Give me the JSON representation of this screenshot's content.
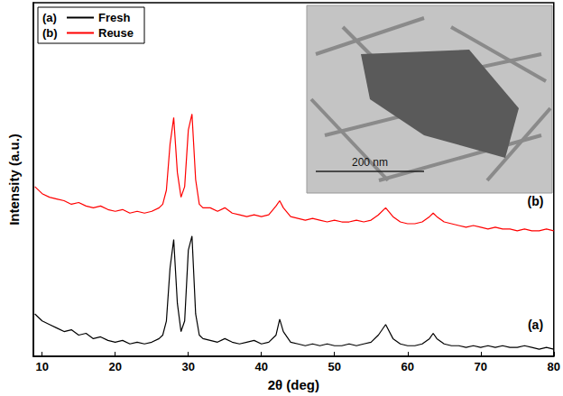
{
  "chart_data": {
    "type": "line",
    "x_label": "2θ (deg)",
    "y_label": "Intensity (a.u.)",
    "xlim": [
      8.8,
      80
    ],
    "xticks": [
      10,
      20,
      30,
      40,
      50,
      60,
      70,
      80
    ],
    "ylim": [
      0,
      100
    ],
    "tick_labels": "x",
    "grid": false,
    "legend": "upper left",
    "x": [
      9,
      10,
      11,
      12,
      13,
      14,
      15,
      16,
      17,
      18,
      19,
      20,
      21,
      22,
      23,
      24,
      25,
      26,
      26.5,
      27,
      27.5,
      28,
      28.5,
      29,
      29.5,
      30,
      30.5,
      31,
      31.5,
      32,
      33,
      34,
      35,
      36,
      37,
      38,
      39,
      40,
      41,
      42,
      42.5,
      43,
      44,
      45,
      46,
      47,
      48,
      49,
      50,
      51,
      52,
      53,
      54,
      55,
      56,
      57,
      58,
      59,
      60,
      61,
      62,
      63,
      63.5,
      64,
      65,
      66,
      67,
      68,
      69,
      70,
      71,
      72,
      73,
      74,
      75,
      76,
      77,
      78,
      79,
      80
    ],
    "series": [
      {
        "name": "Fresh",
        "label": "(a)",
        "color": "#000000",
        "values": [
          12,
          10,
          9,
          8,
          7,
          7.5,
          6,
          6.5,
          5,
          5.5,
          4.5,
          4,
          4.5,
          3.5,
          4,
          3.5,
          4,
          5,
          6,
          10,
          25,
          33,
          15,
          7,
          10,
          30,
          34,
          12,
          6,
          5,
          4.5,
          4,
          5,
          4,
          3.5,
          4,
          4.5,
          3.5,
          4,
          6,
          10.5,
          7,
          4,
          3.5,
          3,
          3.5,
          3,
          3.5,
          3,
          3,
          3.5,
          3,
          3.5,
          4,
          6,
          9,
          5,
          3.5,
          3,
          3,
          3.5,
          5,
          6.5,
          5,
          3.5,
          3,
          3,
          2.5,
          3,
          2.5,
          3,
          2.5,
          3,
          2.5,
          2.5,
          3,
          2.5,
          2,
          2.5,
          2
        ]
      },
      {
        "name": "Reuse",
        "label": "(b)",
        "color": "#ff0000",
        "values": [
          48,
          46,
          45,
          44.5,
          44,
          43,
          43.5,
          42.5,
          42,
          42.5,
          41.5,
          41,
          41.5,
          40.5,
          41,
          40.5,
          41,
          42,
          43,
          47,
          60,
          67.5,
          52,
          45,
          48,
          64,
          68.5,
          50,
          43,
          42,
          42,
          41,
          42,
          40.5,
          40,
          39.5,
          40,
          39.5,
          40,
          42.5,
          44,
          42,
          39.5,
          39,
          38.5,
          39,
          38.5,
          38,
          38.5,
          38,
          38,
          38.5,
          38,
          38.5,
          40,
          42,
          39.5,
          38,
          37.5,
          37.5,
          38,
          39.5,
          40.5,
          39.5,
          38,
          37.5,
          37,
          36.5,
          37,
          36.5,
          36,
          36.5,
          36,
          36,
          35.5,
          36,
          35.5,
          35.5,
          36,
          35.5
        ]
      }
    ],
    "annotations": [
      {
        "text": "(a)",
        "x": 77.5,
        "y": 9
      },
      {
        "text": "(b)",
        "x": 77.5,
        "y": 44
      }
    ],
    "inset": {
      "scale_bar": "200 nm"
    }
  }
}
